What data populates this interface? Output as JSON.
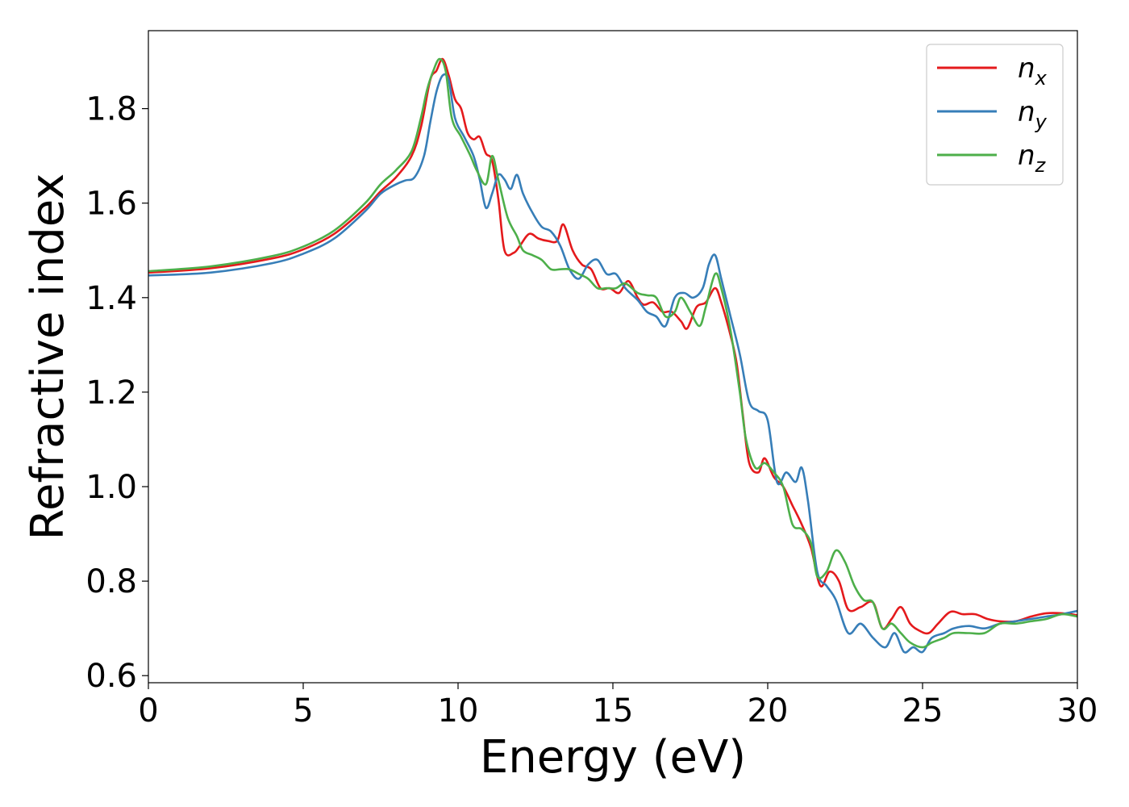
{
  "chart_data": {
    "type": "line",
    "title": "",
    "xlabel": "Energy (eV)",
    "ylabel": "Refractive index",
    "xlim": [
      0,
      30
    ],
    "ylim": [
      0.585,
      1.965
    ],
    "xticks": [
      0,
      5,
      10,
      15,
      20,
      25,
      30
    ],
    "xtick_labels": [
      "0",
      "5",
      "10",
      "15",
      "20",
      "25",
      "30"
    ],
    "yticks": [
      0.6,
      0.8,
      1.0,
      1.2,
      1.4,
      1.6,
      1.8
    ],
    "ytick_labels": [
      "0.6",
      "0.8",
      "1.0",
      "1.2",
      "1.4",
      "1.6",
      "1.8"
    ],
    "grid": false,
    "legend_position": "top-right",
    "series": [
      {
        "name": "n",
        "subscript": "x",
        "color": "#e41a1c",
        "points": [
          [
            0,
            1.453
          ],
          [
            2,
            1.462
          ],
          [
            4,
            1.483
          ],
          [
            5,
            1.502
          ],
          [
            6,
            1.535
          ],
          [
            7,
            1.59
          ],
          [
            7.5,
            1.625
          ],
          [
            8,
            1.655
          ],
          [
            8.5,
            1.7
          ],
          [
            8.8,
            1.76
          ],
          [
            9.1,
            1.86
          ],
          [
            9.3,
            1.88
          ],
          [
            9.5,
            1.905
          ],
          [
            9.7,
            1.87
          ],
          [
            9.9,
            1.82
          ],
          [
            10.1,
            1.8
          ],
          [
            10.3,
            1.75
          ],
          [
            10.5,
            1.735
          ],
          [
            10.7,
            1.74
          ],
          [
            10.9,
            1.705
          ],
          [
            11.1,
            1.69
          ],
          [
            11.3,
            1.61
          ],
          [
            11.5,
            1.5
          ],
          [
            11.8,
            1.495
          ],
          [
            12.0,
            1.51
          ],
          [
            12.3,
            1.535
          ],
          [
            12.6,
            1.525
          ],
          [
            12.9,
            1.52
          ],
          [
            13.2,
            1.52
          ],
          [
            13.4,
            1.555
          ],
          [
            13.7,
            1.5
          ],
          [
            14.0,
            1.47
          ],
          [
            14.3,
            1.46
          ],
          [
            14.6,
            1.42
          ],
          [
            14.9,
            1.42
          ],
          [
            15.2,
            1.41
          ],
          [
            15.5,
            1.435
          ],
          [
            15.8,
            1.4
          ],
          [
            16.0,
            1.385
          ],
          [
            16.3,
            1.39
          ],
          [
            16.6,
            1.37
          ],
          [
            16.9,
            1.37
          ],
          [
            17.2,
            1.35
          ],
          [
            17.4,
            1.335
          ],
          [
            17.7,
            1.38
          ],
          [
            18.0,
            1.39
          ],
          [
            18.3,
            1.42
          ],
          [
            18.5,
            1.39
          ],
          [
            18.8,
            1.32
          ],
          [
            19.0,
            1.26
          ],
          [
            19.2,
            1.15
          ],
          [
            19.4,
            1.05
          ],
          [
            19.7,
            1.03
          ],
          [
            19.9,
            1.06
          ],
          [
            20.2,
            1.02
          ],
          [
            20.5,
            1.0
          ],
          [
            20.8,
            0.96
          ],
          [
            21.1,
            0.92
          ],
          [
            21.4,
            0.87
          ],
          [
            21.7,
            0.79
          ],
          [
            22.0,
            0.82
          ],
          [
            22.3,
            0.8
          ],
          [
            22.6,
            0.74
          ],
          [
            23.0,
            0.745
          ],
          [
            23.4,
            0.755
          ],
          [
            23.7,
            0.7
          ],
          [
            24.0,
            0.72
          ],
          [
            24.3,
            0.745
          ],
          [
            24.6,
            0.71
          ],
          [
            24.9,
            0.695
          ],
          [
            25.2,
            0.69
          ],
          [
            25.5,
            0.71
          ],
          [
            25.9,
            0.735
          ],
          [
            26.3,
            0.73
          ],
          [
            26.7,
            0.73
          ],
          [
            27.1,
            0.72
          ],
          [
            27.5,
            0.715
          ],
          [
            28.0,
            0.715
          ],
          [
            28.5,
            0.725
          ],
          [
            29.0,
            0.732
          ],
          [
            29.5,
            0.732
          ],
          [
            30.0,
            0.728
          ]
        ]
      },
      {
        "name": "n",
        "subscript": "y",
        "color": "#377eb8",
        "points": [
          [
            0,
            1.447
          ],
          [
            2,
            1.453
          ],
          [
            4,
            1.473
          ],
          [
            5,
            1.493
          ],
          [
            6,
            1.525
          ],
          [
            7,
            1.583
          ],
          [
            7.5,
            1.62
          ],
          [
            8,
            1.64
          ],
          [
            8.3,
            1.648
          ],
          [
            8.6,
            1.655
          ],
          [
            8.9,
            1.7
          ],
          [
            9.1,
            1.77
          ],
          [
            9.3,
            1.835
          ],
          [
            9.5,
            1.87
          ],
          [
            9.7,
            1.86
          ],
          [
            9.9,
            1.78
          ],
          [
            10.2,
            1.74
          ],
          [
            10.5,
            1.7
          ],
          [
            10.7,
            1.65
          ],
          [
            10.9,
            1.59
          ],
          [
            11.1,
            1.62
          ],
          [
            11.3,
            1.66
          ],
          [
            11.5,
            1.65
          ],
          [
            11.7,
            1.63
          ],
          [
            11.9,
            1.66
          ],
          [
            12.1,
            1.62
          ],
          [
            12.4,
            1.58
          ],
          [
            12.7,
            1.55
          ],
          [
            13.0,
            1.54
          ],
          [
            13.3,
            1.51
          ],
          [
            13.6,
            1.46
          ],
          [
            13.9,
            1.44
          ],
          [
            14.2,
            1.47
          ],
          [
            14.5,
            1.48
          ],
          [
            14.8,
            1.45
          ],
          [
            15.1,
            1.45
          ],
          [
            15.4,
            1.42
          ],
          [
            15.8,
            1.395
          ],
          [
            16.1,
            1.37
          ],
          [
            16.4,
            1.36
          ],
          [
            16.7,
            1.34
          ],
          [
            17.0,
            1.4
          ],
          [
            17.3,
            1.41
          ],
          [
            17.6,
            1.4
          ],
          [
            17.9,
            1.42
          ],
          [
            18.1,
            1.47
          ],
          [
            18.3,
            1.49
          ],
          [
            18.5,
            1.44
          ],
          [
            18.8,
            1.36
          ],
          [
            19.1,
            1.28
          ],
          [
            19.4,
            1.18
          ],
          [
            19.7,
            1.16
          ],
          [
            20.0,
            1.14
          ],
          [
            20.3,
            1.01
          ],
          [
            20.6,
            1.03
          ],
          [
            20.9,
            1.01
          ],
          [
            21.1,
            1.04
          ],
          [
            21.3,
            0.97
          ],
          [
            21.6,
            0.82
          ],
          [
            21.9,
            0.79
          ],
          [
            22.2,
            0.76
          ],
          [
            22.6,
            0.69
          ],
          [
            23.0,
            0.71
          ],
          [
            23.4,
            0.68
          ],
          [
            23.8,
            0.66
          ],
          [
            24.1,
            0.69
          ],
          [
            24.4,
            0.65
          ],
          [
            24.7,
            0.66
          ],
          [
            25.0,
            0.65
          ],
          [
            25.3,
            0.68
          ],
          [
            25.7,
            0.69
          ],
          [
            26.0,
            0.7
          ],
          [
            26.5,
            0.705
          ],
          [
            27.0,
            0.7
          ],
          [
            27.5,
            0.71
          ],
          [
            28.0,
            0.715
          ],
          [
            28.5,
            0.72
          ],
          [
            29.0,
            0.725
          ],
          [
            29.5,
            0.73
          ],
          [
            30.0,
            0.737
          ]
        ]
      },
      {
        "name": "n",
        "subscript": "z",
        "color": "#4daf4a",
        "points": [
          [
            0,
            1.456
          ],
          [
            2,
            1.466
          ],
          [
            4,
            1.488
          ],
          [
            5,
            1.508
          ],
          [
            6,
            1.542
          ],
          [
            7,
            1.6
          ],
          [
            7.5,
            1.64
          ],
          [
            8,
            1.67
          ],
          [
            8.5,
            1.71
          ],
          [
            8.8,
            1.78
          ],
          [
            9.0,
            1.84
          ],
          [
            9.2,
            1.88
          ],
          [
            9.4,
            1.905
          ],
          [
            9.6,
            1.88
          ],
          [
            9.8,
            1.78
          ],
          [
            10.1,
            1.74
          ],
          [
            10.4,
            1.7
          ],
          [
            10.6,
            1.67
          ],
          [
            10.9,
            1.64
          ],
          [
            11.1,
            1.7
          ],
          [
            11.3,
            1.65
          ],
          [
            11.6,
            1.57
          ],
          [
            11.9,
            1.53
          ],
          [
            12.1,
            1.5
          ],
          [
            12.4,
            1.49
          ],
          [
            12.7,
            1.48
          ],
          [
            13.0,
            1.46
          ],
          [
            13.3,
            1.46
          ],
          [
            13.6,
            1.46
          ],
          [
            13.9,
            1.45
          ],
          [
            14.2,
            1.44
          ],
          [
            14.5,
            1.42
          ],
          [
            14.8,
            1.42
          ],
          [
            15.1,
            1.42
          ],
          [
            15.4,
            1.43
          ],
          [
            15.8,
            1.41
          ],
          [
            16.1,
            1.405
          ],
          [
            16.4,
            1.4
          ],
          [
            16.7,
            1.36
          ],
          [
            17.0,
            1.37
          ],
          [
            17.2,
            1.4
          ],
          [
            17.5,
            1.37
          ],
          [
            17.8,
            1.34
          ],
          [
            18.0,
            1.38
          ],
          [
            18.3,
            1.45
          ],
          [
            18.5,
            1.42
          ],
          [
            18.8,
            1.33
          ],
          [
            19.1,
            1.2
          ],
          [
            19.3,
            1.1
          ],
          [
            19.6,
            1.04
          ],
          [
            19.9,
            1.05
          ],
          [
            20.2,
            1.03
          ],
          [
            20.5,
            1.0
          ],
          [
            20.8,
            0.92
          ],
          [
            21.1,
            0.91
          ],
          [
            21.4,
            0.88
          ],
          [
            21.6,
            0.81
          ],
          [
            21.9,
            0.82
          ],
          [
            22.2,
            0.865
          ],
          [
            22.5,
            0.84
          ],
          [
            22.8,
            0.79
          ],
          [
            23.1,
            0.76
          ],
          [
            23.4,
            0.755
          ],
          [
            23.7,
            0.7
          ],
          [
            24.0,
            0.71
          ],
          [
            24.3,
            0.69
          ],
          [
            24.6,
            0.67
          ],
          [
            25.0,
            0.66
          ],
          [
            25.3,
            0.67
          ],
          [
            25.7,
            0.68
          ],
          [
            26.0,
            0.69
          ],
          [
            26.5,
            0.69
          ],
          [
            27.0,
            0.69
          ],
          [
            27.5,
            0.71
          ],
          [
            28.0,
            0.71
          ],
          [
            28.5,
            0.715
          ],
          [
            29.0,
            0.72
          ],
          [
            29.5,
            0.73
          ],
          [
            30.0,
            0.725
          ]
        ]
      }
    ]
  }
}
